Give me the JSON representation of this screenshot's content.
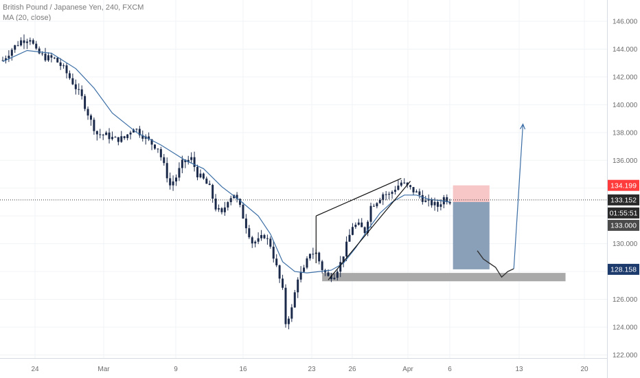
{
  "legend": {
    "symbol_line": "British Pound / Japanese Yen, 240, FXCM",
    "ma_line": "MA (20, close)"
  },
  "colors": {
    "candle": "#1b2a4a",
    "ma": "#3b6ea5",
    "stop_zone": "#f7c6c6",
    "target_zone": "#8aa0b8",
    "support_zone": "#a9a9a9",
    "price_badge_red": "#ff3b3b",
    "price_badge_dark": "#2a2a2a",
    "price_badge_navy": "#1c3a6b",
    "price_badge_gray": "#4a4a4a"
  },
  "chart_data": {
    "type": "candlestick",
    "ylim": [
      122,
      147
    ],
    "y_ticks": [
      122,
      124,
      126,
      128,
      130,
      132,
      134,
      136,
      138,
      140,
      142,
      144,
      146
    ],
    "y_tick_labels": [
      "122.000",
      "124.000",
      "126.000",
      "128.000",
      "130.000",
      "132.000",
      "134.000",
      "136.000",
      "138.000",
      "140.000",
      "142.000",
      "144.000",
      "146.000"
    ],
    "x_ticks": [
      "24",
      "Mar",
      "9",
      "16",
      "23",
      "26",
      "Apr",
      "6",
      "13",
      "20"
    ],
    "price_path": [
      [
        0,
        143.2
      ],
      [
        3,
        144.0
      ],
      [
        6,
        144.6
      ],
      [
        9,
        144.8
      ],
      [
        11,
        143.8
      ],
      [
        14,
        143.4
      ],
      [
        17,
        143.3
      ],
      [
        20,
        142.6
      ],
      [
        23,
        141.6
      ],
      [
        26,
        140.5
      ],
      [
        29,
        138.8
      ],
      [
        31,
        137.9
      ],
      [
        34,
        137.8
      ],
      [
        37,
        137.5
      ],
      [
        40,
        137.6
      ],
      [
        43,
        138.4
      ],
      [
        46,
        137.8
      ],
      [
        49,
        137.2
      ],
      [
        51,
        136.9
      ],
      [
        53,
        135.6
      ],
      [
        55,
        134.2
      ],
      [
        57,
        134.8
      ],
      [
        59,
        135.8
      ],
      [
        62,
        136.1
      ],
      [
        64,
        135.0
      ],
      [
        66,
        134.6
      ],
      [
        68,
        134.0
      ],
      [
        70,
        132.6
      ],
      [
        72,
        132.1
      ],
      [
        74,
        133.2
      ],
      [
        76,
        133.6
      ],
      [
        78,
        132.6
      ],
      [
        80,
        131.3
      ],
      [
        82,
        130.1
      ],
      [
        84,
        130.2
      ],
      [
        86,
        130.6
      ],
      [
        88,
        129.9
      ],
      [
        90,
        128.3
      ],
      [
        92,
        126.6
      ],
      [
        93,
        124.3
      ],
      [
        95,
        125.3
      ],
      [
        97,
        127.6
      ],
      [
        99,
        128.1
      ],
      [
        101,
        129.4
      ],
      [
        103,
        129.3
      ],
      [
        105,
        128.2
      ],
      [
        107,
        127.6
      ],
      [
        109,
        127.8
      ],
      [
        111,
        128.6
      ],
      [
        113,
        129.9
      ],
      [
        115,
        131.3
      ],
      [
        117,
        131.3
      ],
      [
        119,
        130.9
      ],
      [
        121,
        132.7
      ],
      [
        123,
        133.1
      ],
      [
        125,
        133.6
      ],
      [
        127,
        133.5
      ],
      [
        129,
        134.0
      ],
      [
        131,
        134.4
      ],
      [
        133,
        134.1
      ],
      [
        135,
        133.8
      ],
      [
        137,
        133.5
      ],
      [
        139,
        133.0
      ],
      [
        141,
        132.9
      ],
      [
        143,
        132.7
      ],
      [
        145,
        133.3
      ],
      [
        147,
        133.1
      ]
    ],
    "ma_path": [
      [
        0,
        143.1
      ],
      [
        8,
        143.9
      ],
      [
        16,
        143.7
      ],
      [
        24,
        142.6
      ],
      [
        30,
        141.2
      ],
      [
        36,
        139.4
      ],
      [
        44,
        138.0
      ],
      [
        52,
        137.1
      ],
      [
        60,
        136.0
      ],
      [
        66,
        135.4
      ],
      [
        72,
        134.1
      ],
      [
        78,
        133.1
      ],
      [
        84,
        132.0
      ],
      [
        88,
        130.7
      ],
      [
        92,
        128.7
      ],
      [
        96,
        128.0
      ],
      [
        100,
        127.9
      ],
      [
        104,
        128.0
      ],
      [
        108,
        128.1
      ],
      [
        112,
        128.6
      ],
      [
        116,
        129.7
      ],
      [
        120,
        131.0
      ],
      [
        124,
        132.2
      ],
      [
        128,
        133.0
      ],
      [
        132,
        133.5
      ],
      [
        136,
        133.5
      ],
      [
        140,
        133.2
      ],
      [
        144,
        133.1
      ],
      [
        147,
        133.0
      ]
    ],
    "wedge_upper": [
      [
        103,
        132.0
      ],
      [
        131,
        134.7
      ]
    ],
    "wedge_lower": [
      [
        107,
        127.4
      ],
      [
        134,
        134.5
      ]
    ],
    "projection_path": [
      [
        156,
        129.5
      ],
      [
        158,
        128.9
      ],
      [
        160,
        128.6
      ],
      [
        162,
        128.3
      ],
      [
        164,
        127.6
      ],
      [
        166,
        128.0
      ],
      [
        168,
        128.2
      ],
      [
        171,
        138.6
      ]
    ],
    "stop_zone": {
      "x0": 148,
      "x1": 160,
      "y0": 133.0,
      "y1": 134.199
    },
    "target_zone": {
      "x0": 148,
      "x1": 160,
      "y0": 128.158,
      "y1": 133.0
    },
    "support_zone": {
      "x0": 105,
      "x1": 185,
      "y0": 127.3,
      "y1": 127.9
    },
    "current_price": 133.152,
    "price_labels": {
      "stop": "134.199",
      "current": "133.152",
      "countdown": "01:55:51",
      "entry": "133.000",
      "target": "128.158"
    }
  }
}
